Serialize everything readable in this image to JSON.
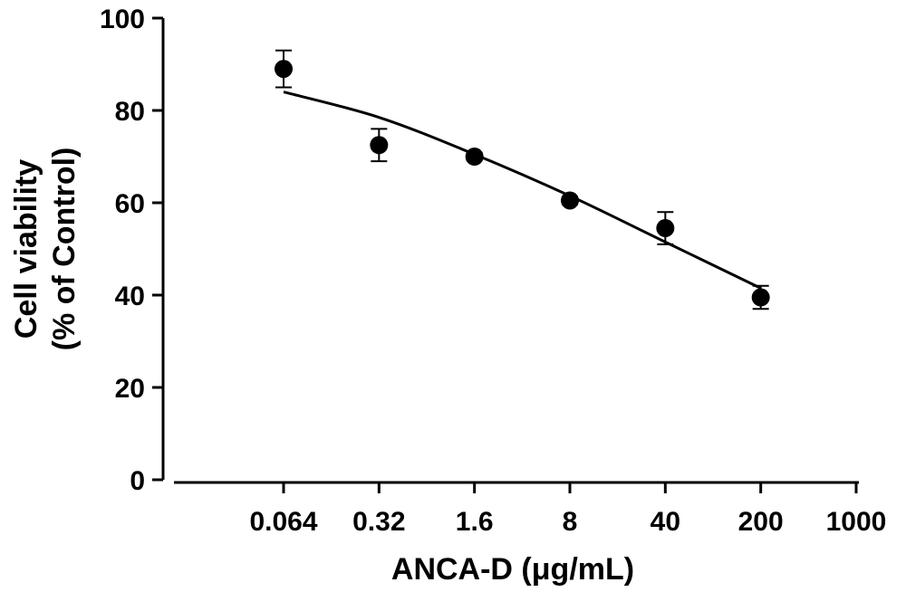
{
  "chart_data": {
    "type": "scatter",
    "xlabel": "ANCA-D (μg/mL)",
    "ylabel_lines": [
      "Cell viability",
      "(% of Control)"
    ],
    "x_scale": "log",
    "x_ticks": [
      0.064,
      0.32,
      1.6,
      8,
      40,
      200,
      1000
    ],
    "x_tick_labels": [
      "0.064",
      "0.32",
      "1.6",
      "8",
      "40",
      "200",
      "1000"
    ],
    "ylim": [
      0,
      100
    ],
    "y_ticks": [
      0,
      20,
      40,
      60,
      80,
      100
    ],
    "y_tick_labels": [
      "0",
      "20",
      "40",
      "60",
      "80",
      "100"
    ],
    "grid": false,
    "points": [
      {
        "x": 0.064,
        "y": 89,
        "err": 4
      },
      {
        "x": 0.32,
        "y": 72.5,
        "err": 3.5
      },
      {
        "x": 1.6,
        "y": 70,
        "err": 0.8
      },
      {
        "x": 8,
        "y": 60.5,
        "err": 0.8
      },
      {
        "x": 40,
        "y": 54.5,
        "err": 3.5
      },
      {
        "x": 200,
        "y": 39.5,
        "err": 2.5
      }
    ],
    "fit_curve": {
      "x": [
        0.064,
        0.32,
        1.6,
        8,
        40,
        200
      ],
      "y": [
        84,
        78.5,
        70.5,
        61.5,
        51.5,
        41.5
      ]
    },
    "colors": {
      "marker": "#000000",
      "line": "#000000"
    }
  }
}
